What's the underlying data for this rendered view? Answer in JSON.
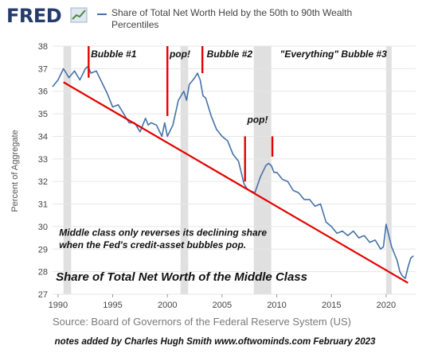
{
  "header": {
    "logo_text": "FRED",
    "legend_label": "Share of Total Net Worth Held by the 50th to 90th Wealth Percentiles"
  },
  "colors": {
    "series": "#4572a7",
    "annotation": "#e60000",
    "recession": "#e0e0e0",
    "grid": "#e6e6e6"
  },
  "chart_data": {
    "type": "line",
    "ylabel": "Percent of Aggregate",
    "xlim": [
      1989.5,
      2022.7
    ],
    "ylim": [
      27,
      38
    ],
    "yticks": [
      27,
      28,
      29,
      30,
      31,
      32,
      33,
      34,
      35,
      36,
      37,
      38
    ],
    "xticks": [
      1990,
      1995,
      2000,
      2005,
      2010,
      2015,
      2020
    ],
    "recessions": [
      [
        1990.5,
        1991.2
      ],
      [
        2001.2,
        2001.9
      ],
      [
        2007.9,
        2009.5
      ],
      [
        2020.0,
        2020.5
      ]
    ],
    "series": [
      {
        "name": "Share of Total Net Worth Held by the 50th to 90th Wealth Percentiles",
        "x": [
          1989.5,
          1990,
          1990.5,
          1990.75,
          1991,
          1991.5,
          1992,
          1992.5,
          1992.75,
          1993,
          1993.5,
          1994,
          1994.5,
          1995,
          1995.5,
          1996,
          1996.5,
          1997,
          1997.5,
          1998,
          1998.25,
          1998.5,
          1999,
          1999.5,
          1999.75,
          2000,
          2000.5,
          2001,
          2001.5,
          2001.75,
          2002,
          2002.5,
          2002.75,
          2003,
          2003.25,
          2003.5,
          2004,
          2004.5,
          2005,
          2005.5,
          2006,
          2006.5,
          2007,
          2007.25,
          2007.5,
          2008,
          2008.5,
          2009,
          2009.25,
          2009.5,
          2009.75,
          2010,
          2010.5,
          2011,
          2011.5,
          2012,
          2012.5,
          2013,
          2013.5,
          2014,
          2014.5,
          2015,
          2015.5,
          2016,
          2016.5,
          2017,
          2017.5,
          2018,
          2018.5,
          2019,
          2019.5,
          2019.75,
          2020,
          2020.25,
          2020.5,
          2021,
          2021.25,
          2021.5,
          2021.75,
          2022,
          2022.25,
          2022.5
        ],
        "y": [
          36.2,
          36.5,
          37.0,
          36.8,
          36.6,
          36.9,
          36.5,
          37.0,
          37.1,
          36.8,
          36.9,
          36.4,
          35.9,
          35.3,
          35.4,
          35.0,
          34.6,
          34.6,
          34.2,
          34.8,
          34.5,
          34.6,
          34.5,
          34.0,
          34.6,
          34.0,
          34.5,
          35.6,
          36.0,
          35.6,
          36.3,
          36.6,
          36.8,
          36.5,
          35.8,
          35.7,
          34.9,
          34.3,
          34.0,
          33.8,
          33.2,
          32.9,
          31.9,
          31.7,
          31.6,
          31.5,
          32.2,
          32.7,
          32.8,
          32.7,
          32.4,
          32.4,
          32.1,
          32.0,
          31.6,
          31.5,
          31.2,
          31.2,
          30.9,
          31.0,
          30.2,
          30.0,
          29.7,
          29.8,
          29.6,
          29.8,
          29.5,
          29.6,
          29.3,
          29.4,
          29.0,
          29.1,
          30.1,
          29.6,
          29.1,
          28.5,
          28.0,
          27.8,
          27.7,
          28.2,
          28.6,
          28.7
        ]
      }
    ],
    "trendline": {
      "x": [
        1990.5,
        2022.0
      ],
      "y": [
        36.4,
        27.5
      ]
    },
    "markers": [
      {
        "x": 1992.8,
        "y1": 36.6,
        "y2": 38.0
      },
      {
        "x": 2000.0,
        "y1": 34.9,
        "y2": 38.0
      },
      {
        "x": 2003.2,
        "y1": 36.8,
        "y2": 38.0
      },
      {
        "x": 2007.1,
        "y1": 32.0,
        "y2": 34.0
      },
      {
        "x": 2009.6,
        "y1": 33.1,
        "y2": 34.0
      }
    ],
    "annotations": [
      {
        "id": "bubble1",
        "text": "Bubble #1",
        "x": 1993.0,
        "y": 37.5
      },
      {
        "id": "pop1",
        "text": "pop!",
        "x": 2000.2,
        "y": 37.5
      },
      {
        "id": "bubble2",
        "text": "Bubble #2",
        "x": 2003.6,
        "y": 37.5
      },
      {
        "id": "bubble3",
        "text": "\"Everything\" Bubble #3",
        "x": 2010.3,
        "y": 37.5
      },
      {
        "id": "pop2",
        "text": "pop!",
        "x": 2007.3,
        "y": 34.6
      },
      {
        "id": "note1",
        "text": "Middle class only reverses its declining share",
        "x": 1990.1,
        "y": 29.6
      },
      {
        "id": "note2",
        "text": "when the Fed's credit-asset bubbles pop.",
        "x": 1990.1,
        "y": 29.05
      },
      {
        "id": "subtitle",
        "text": "Share of Total Net Worth of the Middle Class",
        "x": 1989.8,
        "y": 27.6
      }
    ]
  },
  "source_text": "Source: Board of Governors of the Federal Reserve System (US)",
  "footer_text": "notes added by Charles Hugh Smith   www.oftwominds.com    February 2023"
}
